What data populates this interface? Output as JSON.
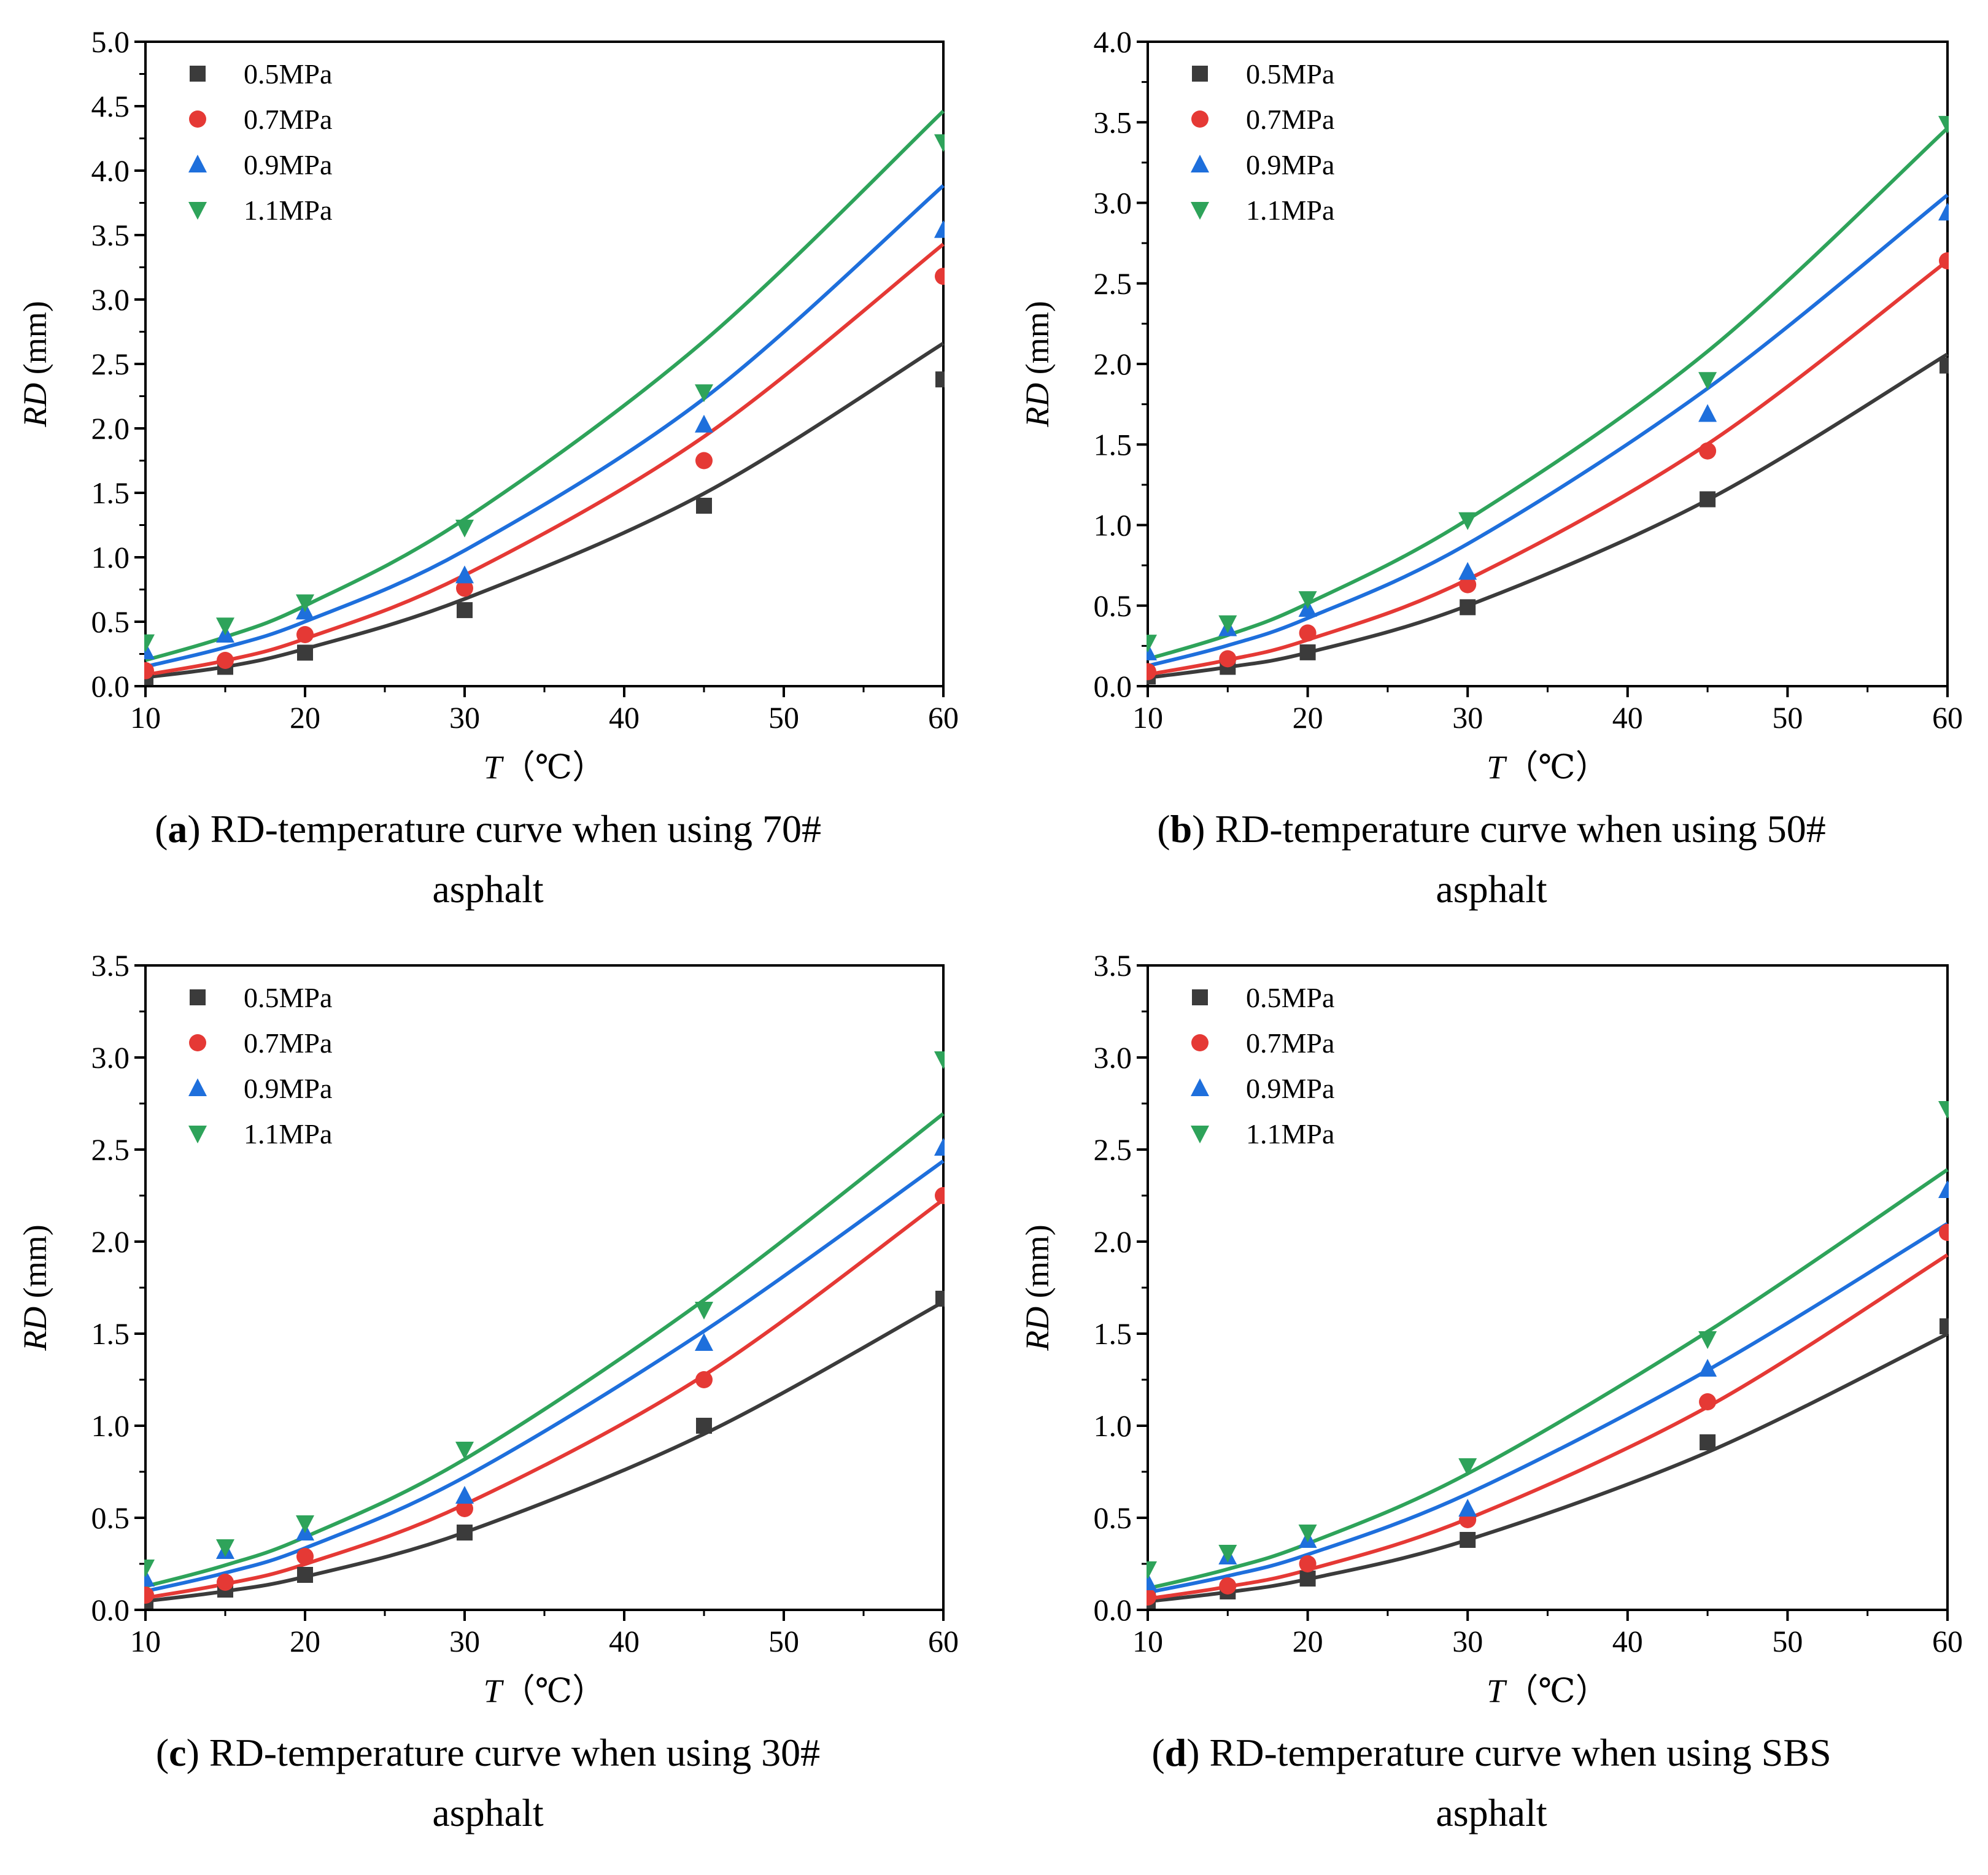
{
  "colors": {
    "0.5MPa": "#3b3b3b",
    "0.7MPa": "#e53935",
    "0.9MPa": "#1e6fdc",
    "1.1MPa": "#2ea35a"
  },
  "marker_shapes": {
    "0.5MPa": "square",
    "0.7MPa": "circle",
    "0.9MPa": "triangle-up",
    "1.1MPa": "triangle-down"
  },
  "axis_titles": {
    "x_var": "T",
    "x_unit": "（℃）",
    "y_var": "RD",
    "y_unit": " (mm)"
  },
  "chart_data": [
    {
      "type": "scatter",
      "panel": "a",
      "caption": {
        "label": "a",
        "line1": " RD-temperature curve when using 70#",
        "line2": "asphalt"
      },
      "xlim": [
        10,
        60
      ],
      "ylim": [
        0,
        5.0
      ],
      "xticks": [
        "10",
        "20",
        "30",
        "40",
        "50",
        "60"
      ],
      "yticks": [
        "0.0",
        "0.5",
        "1.0",
        "1.5",
        "2.0",
        "2.5",
        "3.0",
        "3.5",
        "4.0",
        "4.5",
        "5.0"
      ],
      "legend": "top-left",
      "x": [
        10,
        15,
        20,
        30,
        45,
        60
      ],
      "series": [
        {
          "name": "0.5MPa",
          "values": [
            0.07,
            0.15,
            0.26,
            0.59,
            1.4,
            2.38
          ],
          "fit": [
            0.0686,
            0.15,
            0.2897,
            0.6769,
            1.495,
            2.66
          ]
        },
        {
          "name": "0.7MPa",
          "values": [
            0.12,
            0.2,
            0.4,
            0.76,
            1.75,
            3.18
          ],
          "fit": [
            0.0881,
            0.1983,
            0.3681,
            0.8614,
            1.9364,
            3.4294
          ]
        },
        {
          "name": "0.9MPa",
          "values": [
            0.27,
            0.4,
            0.58,
            0.86,
            2.03,
            3.54
          ],
          "fit": [
            0.1516,
            0.3012,
            0.5011,
            1.0529,
            2.2314,
            3.8837
          ]
        },
        {
          "name": "1.1MPa",
          "values": [
            0.34,
            0.47,
            0.65,
            1.23,
            2.28,
            4.22
          ],
          "fit": [
            0.2013,
            0.3818,
            0.6244,
            1.2958,
            2.6774,
            4.4619
          ]
        }
      ]
    },
    {
      "type": "scatter",
      "panel": "b",
      "caption": {
        "label": "b",
        "line1": " RD-temperature curve when using 50#",
        "line2": "asphalt"
      },
      "xlim": [
        10,
        60
      ],
      "ylim": [
        0,
        4.0
      ],
      "xticks": [
        "10",
        "20",
        "30",
        "40",
        "50",
        "60"
      ],
      "yticks": [
        "0.0",
        "0.5",
        "1.0",
        "1.5",
        "2.0",
        "2.5",
        "3.0",
        "3.5",
        "4.0"
      ],
      "legend": "top-left",
      "x": [
        10,
        15,
        20,
        30,
        45,
        60
      ],
      "series": [
        {
          "name": "0.5MPa",
          "values": [
            0.06,
            0.12,
            0.21,
            0.49,
            1.16,
            1.99
          ],
          "fit": [
            0.0528,
            0.1181,
            0.2083,
            0.5,
            1.1561,
            2.0606
          ]
        },
        {
          "name": "0.7MPa",
          "values": [
            0.09,
            0.17,
            0.33,
            0.63,
            1.46,
            2.64
          ],
          "fit": [
            0.0725,
            0.1627,
            0.2878,
            0.6624,
            1.5027,
            2.64
          ]
        },
        {
          "name": "0.9MPa",
          "values": [
            0.21,
            0.36,
            0.48,
            0.71,
            1.69,
            2.94
          ],
          "fit": [
            0.1261,
            0.2529,
            0.4222,
            0.8833,
            1.8481,
            3.0485
          ]
        },
        {
          "name": "1.1MPa",
          "values": [
            0.27,
            0.39,
            0.54,
            1.03,
            1.9,
            3.49
          ],
          "fit": [
            0.1684,
            0.3166,
            0.5133,
            1.0348,
            2.0778,
            3.4632
          ]
        }
      ]
    },
    {
      "type": "scatter",
      "panel": "c",
      "caption": {
        "label": "c",
        "line1": " RD-temperature curve when using 30#",
        "line2": "asphalt"
      },
      "xlim": [
        10,
        60
      ],
      "ylim": [
        0,
        3.5
      ],
      "xticks": [
        "10",
        "20",
        "30",
        "40",
        "50",
        "60"
      ],
      "yticks": [
        "0.0",
        "0.5",
        "1.0",
        "1.5",
        "2.0",
        "2.5",
        "3.0",
        "3.5"
      ],
      "legend": "top-left",
      "x": [
        10,
        15,
        20,
        30,
        45,
        60
      ],
      "series": [
        {
          "name": "0.5MPa",
          "values": [
            0.05,
            0.11,
            0.19,
            0.42,
            1.0,
            1.69
          ],
          "fit": [
            0.0471,
            0.1012,
            0.1801,
            0.4206,
            0.9553,
            1.6727
          ]
        },
        {
          "name": "0.7MPa",
          "values": [
            0.08,
            0.15,
            0.29,
            0.55,
            1.25,
            2.25
          ],
          "fit": [
            0.0651,
            0.1405,
            0.2484,
            0.5722,
            1.2736,
            2.2282
          ]
        },
        {
          "name": "0.9MPa",
          "values": [
            0.17,
            0.32,
            0.42,
            0.62,
            1.45,
            2.51
          ],
          "fit": [
            0.1011,
            0.2007,
            0.3354,
            0.7212,
            1.5138,
            2.4376
          ]
        },
        {
          "name": "1.1MPa",
          "values": [
            0.23,
            0.34,
            0.47,
            0.87,
            1.63,
            2.99
          ],
          "fit": [
            0.1276,
            0.2426,
            0.3955,
            0.8181,
            1.6828,
            2.6946
          ]
        }
      ]
    },
    {
      "type": "scatter",
      "panel": "d",
      "caption": {
        "label": "d",
        "line1": " RD-temperature curve when using SBS",
        "line2": "asphalt"
      },
      "xlim": [
        10,
        60
      ],
      "ylim": [
        0,
        3.5
      ],
      "xticks": [
        "10",
        "20",
        "30",
        "40",
        "50",
        "60"
      ],
      "yticks": [
        "0.0",
        "0.5",
        "1.0",
        "1.5",
        "2.0",
        "2.5",
        "3.0",
        "3.5"
      ],
      "legend": "top-left",
      "x": [
        10,
        15,
        20,
        30,
        45,
        60
      ],
      "series": [
        {
          "name": "0.5MPa",
          "values": [
            0.05,
            0.1,
            0.17,
            0.38,
            0.91,
            1.54
          ],
          "fit": [
            0.0457,
            0.0962,
            0.1667,
            0.38,
            0.8564,
            1.4982
          ]
        },
        {
          "name": "0.7MPa",
          "values": [
            0.07,
            0.13,
            0.25,
            0.49,
            1.13,
            2.05
          ],
          "fit": [
            0.06,
            0.1259,
            0.2172,
            0.4943,
            1.1026,
            1.9277
          ]
        },
        {
          "name": "0.9MPa",
          "values": [
            0.15,
            0.29,
            0.38,
            0.55,
            1.31,
            2.28
          ],
          "fit": [
            0.0947,
            0.1839,
            0.3006,
            0.6305,
            1.3018,
            2.0979
          ]
        },
        {
          "name": "1.1MPa",
          "values": [
            0.22,
            0.31,
            0.42,
            0.78,
            1.47,
            2.72
          ],
          "fit": [
            0.1161,
            0.2213,
            0.3597,
            0.7399,
            1.511,
            2.3908
          ]
        }
      ]
    }
  ]
}
